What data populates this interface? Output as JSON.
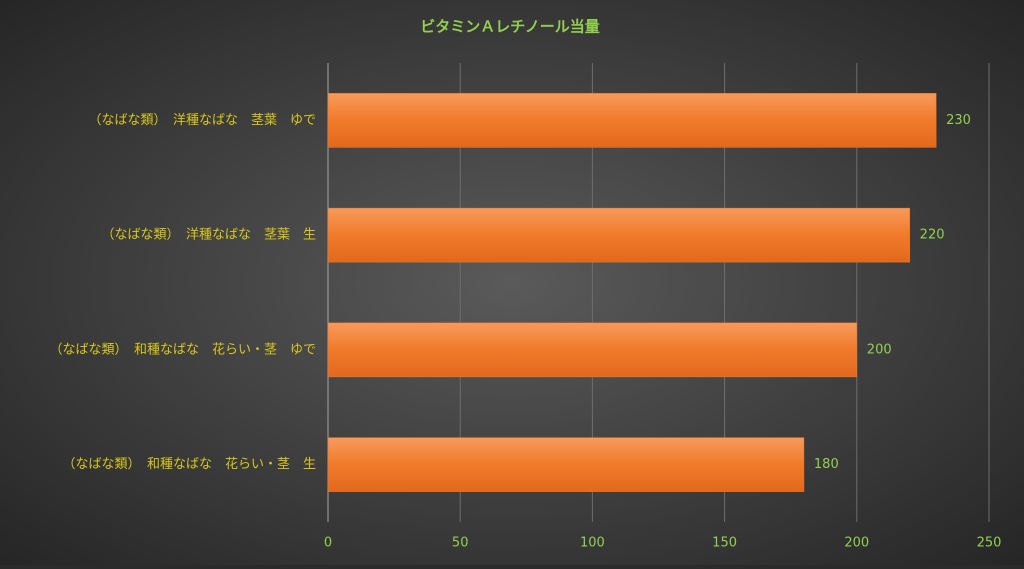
{
  "chart_data": {
    "type": "bar",
    "orientation": "horizontal",
    "title": "ビタミンＡレチノール当量",
    "categories": [
      "（なばな類）　洋種なばな　茎葉　ゆで",
      "（なばな類）　洋種なばな　茎葉　生",
      "（なばな類）　和種なばな　花らい・茎　ゆで",
      "（なばな類）　和種なばな　花らい・茎　生"
    ],
    "values": [
      230,
      220,
      200,
      180
    ],
    "color": "#ed7d31",
    "xlim": [
      0,
      250
    ],
    "xticks": [
      0,
      50,
      100,
      150,
      200,
      250
    ],
    "grid": true
  }
}
